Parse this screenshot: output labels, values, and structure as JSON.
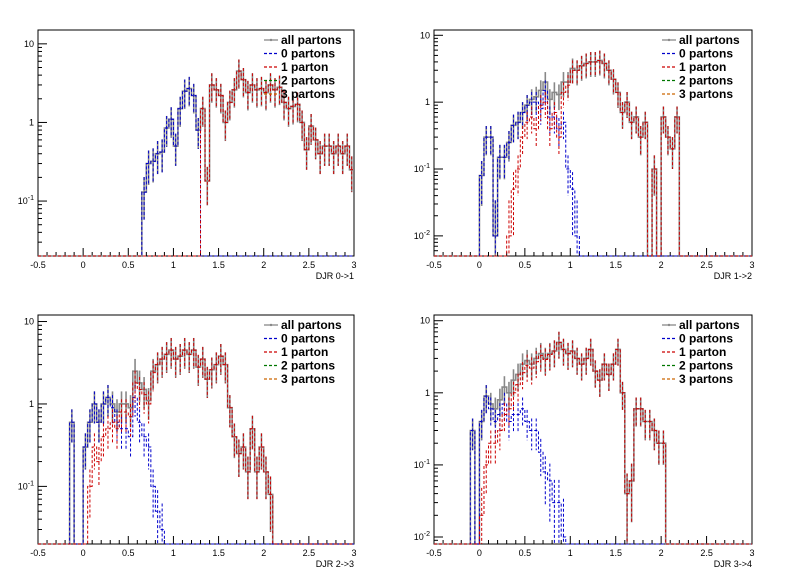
{
  "legend": {
    "entries": [
      {
        "label": "all partons",
        "color": "#888888",
        "dash": "solid"
      },
      {
        "label": "0 partons",
        "color": "#0000cc",
        "dash": "dash"
      },
      {
        "label": "1 parton",
        "color": "#cc0000",
        "dash": "dash"
      },
      {
        "label": "2 partons",
        "color": "#007700",
        "dash": "dash"
      },
      {
        "label": "3 partons",
        "color": "#cc6600",
        "dash": "dash"
      }
    ]
  },
  "chart_data": [
    {
      "type": "histogram",
      "xlabel": "DJR 0->1",
      "xlim": [
        -0.5,
        3
      ],
      "ylim": [
        0.02,
        15
      ],
      "yscale": "log",
      "xticks": [
        "-0.5",
        "0",
        "0.5",
        "1",
        "1.5",
        "2",
        "2.5",
        "3"
      ],
      "yticks": [
        {
          "v": 0.1,
          "label": "10-1"
        },
        {
          "v": 1,
          "label": "1"
        },
        {
          "v": 10,
          "label": "10"
        }
      ],
      "legend_position": "top-right",
      "bin_width": 0.05,
      "bin_start": -0.5,
      "series": [
        {
          "name": "all partons",
          "values": [
            0,
            0,
            0,
            0,
            0,
            0,
            0,
            0,
            0,
            0,
            0,
            0,
            0,
            0,
            0,
            0,
            0,
            0,
            0,
            0,
            0,
            0,
            0,
            0.13,
            0.3,
            0.32,
            0.4,
            0.42,
            0.85,
            1.1,
            0.5,
            1.5,
            2.5,
            2.7,
            2.2,
            0.8,
            1.5,
            0.18,
            3.0,
            2.6,
            2.2,
            1.0,
            1.8,
            2.6,
            4.5,
            3.5,
            2.4,
            3.0,
            2.6,
            2.7,
            2.4,
            3.0,
            2.6,
            2.8,
            1.8,
            1.5,
            1.6,
            1.7,
            1.0,
            0.45,
            0.9,
            0.6,
            0.4,
            0.5,
            0.5,
            0.4,
            0.5,
            0.4,
            0.5,
            0.25
          ]
        },
        {
          "name": "0 partons",
          "values": [
            0,
            0,
            0,
            0,
            0,
            0,
            0,
            0,
            0,
            0,
            0,
            0,
            0,
            0,
            0,
            0,
            0,
            0,
            0,
            0,
            0,
            0,
            0,
            0.13,
            0.3,
            0.32,
            0.4,
            0.42,
            0.85,
            1.1,
            0.5,
            1.5,
            2.5,
            2.7,
            2.2,
            0.8,
            0,
            0,
            0,
            0,
            0,
            0,
            0,
            0,
            0,
            0,
            0,
            0,
            0,
            0,
            0,
            0,
            0,
            0,
            0,
            0,
            0,
            0,
            0,
            0,
            0,
            0,
            0,
            0,
            0,
            0,
            0,
            0,
            0,
            0
          ]
        },
        {
          "name": "1 parton",
          "values": [
            0,
            0,
            0,
            0,
            0,
            0,
            0,
            0,
            0,
            0,
            0,
            0,
            0,
            0,
            0,
            0,
            0,
            0,
            0,
            0,
            0,
            0,
            0,
            0,
            0,
            0,
            0,
            0,
            0,
            0,
            0,
            0,
            0,
            0,
            0,
            0,
            1.5,
            0.18,
            3.0,
            2.6,
            2.2,
            1.0,
            1.8,
            2.6,
            4.5,
            3.5,
            2.4,
            3.0,
            2.6,
            2.7,
            2.4,
            3.0,
            2.6,
            2.8,
            1.8,
            1.5,
            1.6,
            1.7,
            1.0,
            0.45,
            0.9,
            0.6,
            0.4,
            0.5,
            0.5,
            0.4,
            0.5,
            0.4,
            0.5,
            0.25
          ]
        }
      ]
    },
    {
      "type": "histogram",
      "xlabel": "DJR 1->2",
      "xlim": [
        -0.5,
        3
      ],
      "ylim": [
        0.005,
        12
      ],
      "yscale": "log",
      "xticks": [
        "-0.5",
        "0",
        "0.5",
        "1",
        "1.5",
        "2",
        "2.5",
        "3"
      ],
      "yticks": [
        {
          "v": 0.01,
          "label": "10-2"
        },
        {
          "v": 0.1,
          "label": "10-1"
        },
        {
          "v": 1,
          "label": "1"
        },
        {
          "v": 10,
          "label": "10"
        }
      ],
      "legend_position": "top-right",
      "bin_width": 0.05,
      "bin_start": -0.5,
      "series": [
        {
          "name": "all partons",
          "values": [
            0,
            0,
            0,
            0,
            0,
            0,
            0,
            0,
            0,
            0,
            0.08,
            0.3,
            0.3,
            0.01,
            0.15,
            0.15,
            0.25,
            0.45,
            0.5,
            0.7,
            0.9,
            1.1,
            1.2,
            1.5,
            2.0,
            1.1,
            1.4,
            1.3,
            2.0,
            2.0,
            3.2,
            3.0,
            3.5,
            3.8,
            4.0,
            4.0,
            4.2,
            3.8,
            3.0,
            2.2,
            1.4,
            0.7,
            1.0,
            0.5,
            0.6,
            0.3,
            0.5,
            0,
            0.1,
            0,
            0.6,
            0.3,
            0.2,
            0.6,
            0,
            0,
            0,
            0,
            0,
            0,
            0,
            0,
            0,
            0,
            0,
            0,
            0,
            0,
            0,
            0
          ]
        },
        {
          "name": "0 partons",
          "values": [
            0,
            0,
            0,
            0,
            0,
            0,
            0,
            0,
            0,
            0,
            0.08,
            0.3,
            0.3,
            0.01,
            0.15,
            0.15,
            0.25,
            0.45,
            0.5,
            0.7,
            0.9,
            1.0,
            1.0,
            0.8,
            1.5,
            0.6,
            0.6,
            0.4,
            0.5,
            0.1,
            0.05,
            0.01,
            0,
            0,
            0,
            0,
            0,
            0,
            0,
            0,
            0,
            0,
            0,
            0,
            0,
            0,
            0,
            0,
            0,
            0,
            0,
            0,
            0,
            0,
            0,
            0,
            0,
            0,
            0,
            0,
            0,
            0,
            0,
            0,
            0,
            0,
            0,
            0,
            0,
            0
          ]
        },
        {
          "name": "1 parton",
          "values": [
            0,
            0,
            0,
            0,
            0,
            0,
            0,
            0,
            0,
            0,
            0,
            0,
            0,
            0,
            0,
            0,
            0.01,
            0.05,
            0.1,
            0.3,
            0.5,
            0.6,
            0.4,
            0.9,
            1.0,
            0.4,
            0.7,
            0.3,
            1.4,
            1.8,
            3.0,
            3.0,
            3.5,
            3.8,
            4.0,
            4.0,
            4.2,
            3.8,
            3.0,
            2.2,
            1.4,
            0.7,
            1.0,
            0.5,
            0.6,
            0.3,
            0.5,
            0,
            0.1,
            0,
            0.6,
            0.3,
            0.2,
            0.6,
            0,
            0,
            0,
            0,
            0,
            0,
            0,
            0,
            0,
            0,
            0,
            0,
            0,
            0,
            0,
            0
          ]
        }
      ]
    },
    {
      "type": "histogram",
      "xlabel": "DJR 2->3",
      "xlim": [
        -0.5,
        3
      ],
      "ylim": [
        0.02,
        12
      ],
      "yscale": "log",
      "xticks": [
        "-0.5",
        "0",
        "0.5",
        "1",
        "1.5",
        "2",
        "2.5",
        "3"
      ],
      "yticks": [
        {
          "v": 0.1,
          "label": "10-1"
        },
        {
          "v": 1,
          "label": "1"
        },
        {
          "v": 10,
          "label": "10"
        }
      ],
      "legend_position": "top-right",
      "bin_width": 0.05,
      "bin_start": -0.5,
      "series": [
        {
          "name": "all partons",
          "values": [
            0,
            0,
            0,
            0,
            0,
            0,
            0,
            0.6,
            0,
            0,
            0.3,
            0.6,
            1.0,
            0.6,
            1.0,
            1.2,
            1.0,
            0.8,
            1.0,
            1.0,
            0.9,
            2.5,
            1.8,
            1.5,
            1.1,
            2.5,
            3.0,
            3.5,
            4.0,
            4.5,
            3.5,
            3.8,
            4.5,
            4.0,
            4.5,
            2.8,
            3.5,
            2.0,
            2.6,
            3.0,
            3.8,
            3.0,
            0.9,
            0.4,
            0.25,
            0.3,
            0.15,
            0.5,
            0.15,
            0.3,
            0.15,
            0.08,
            0,
            0,
            0,
            0,
            0,
            0,
            0,
            0,
            0,
            0,
            0,
            0,
            0,
            0,
            0,
            0,
            0,
            0
          ]
        },
        {
          "name": "0 partons",
          "values": [
            0,
            0,
            0,
            0,
            0,
            0,
            0,
            0.6,
            0,
            0,
            0.3,
            0.6,
            1.0,
            0.6,
            1.0,
            1.2,
            0.9,
            0.6,
            0.5,
            0.5,
            0.4,
            1.2,
            0.6,
            0.4,
            0.3,
            0.1,
            0.05,
            0.03,
            0,
            0,
            0,
            0,
            0,
            0,
            0,
            0,
            0,
            0,
            0,
            0,
            0,
            0,
            0,
            0,
            0,
            0,
            0,
            0,
            0,
            0,
            0,
            0,
            0,
            0,
            0,
            0,
            0,
            0,
            0,
            0,
            0,
            0,
            0,
            0,
            0,
            0,
            0,
            0,
            0,
            0
          ]
        },
        {
          "name": "1 parton",
          "values": [
            0,
            0,
            0,
            0,
            0,
            0,
            0,
            0,
            0,
            0,
            0,
            0.1,
            0.3,
            0.2,
            0.4,
            0.5,
            0.6,
            0.5,
            0.8,
            0.8,
            0.7,
            1.8,
            1.5,
            1.3,
            1.0,
            2.4,
            3.0,
            3.5,
            4.0,
            4.5,
            3.5,
            3.8,
            4.5,
            4.0,
            4.5,
            2.8,
            3.5,
            2.0,
            2.6,
            3.0,
            3.8,
            3.0,
            0.9,
            0.4,
            0.25,
            0.3,
            0.15,
            0.5,
            0.15,
            0.3,
            0.15,
            0.08,
            0,
            0,
            0,
            0,
            0,
            0,
            0,
            0,
            0,
            0,
            0,
            0,
            0,
            0,
            0,
            0,
            0,
            0
          ]
        }
      ]
    },
    {
      "type": "histogram",
      "xlabel": "DJR 3->4",
      "xlim": [
        -0.5,
        3
      ],
      "ylim": [
        0.008,
        12
      ],
      "yscale": "log",
      "xticks": [
        "-0.5",
        "0",
        "0.5",
        "1",
        "1.5",
        "2",
        "2.5",
        "3"
      ],
      "yticks": [
        {
          "v": 0.01,
          "label": "10-2"
        },
        {
          "v": 0.1,
          "label": "10-1"
        },
        {
          "v": 1,
          "label": "1"
        },
        {
          "v": 10,
          "label": "10"
        }
      ],
      "legend_position": "top-right",
      "bin_width": 0.05,
      "bin_start": -0.5,
      "series": [
        {
          "name": "all partons",
          "values": [
            0,
            0,
            0,
            0,
            0,
            0,
            0,
            0,
            0.3,
            0,
            0.4,
            0.9,
            0.7,
            0.6,
            0.8,
            1.2,
            1.0,
            1.5,
            1.8,
            2.5,
            2.8,
            2.5,
            3.0,
            3.5,
            3.0,
            3.5,
            3.8,
            5.0,
            4.0,
            3.5,
            3.8,
            3.0,
            2.5,
            3.0,
            4.0,
            2.0,
            1.5,
            2.5,
            1.8,
            2.5,
            4.0,
            1.0,
            0.04,
            0.06,
            0.6,
            0.6,
            0.4,
            0.4,
            0.3,
            0.2,
            0.2,
            0,
            0,
            0,
            0,
            0,
            0,
            0,
            0,
            0,
            0,
            0,
            0,
            0,
            0,
            0,
            0,
            0,
            0,
            0
          ]
        },
        {
          "name": "0 partons",
          "values": [
            0,
            0,
            0,
            0,
            0,
            0,
            0,
            0,
            0.3,
            0,
            0.4,
            0.9,
            0.6,
            0.4,
            0.5,
            0.7,
            0.4,
            0.5,
            0.5,
            0.6,
            0.4,
            0.3,
            0.3,
            0.15,
            0.08,
            0.06,
            0.03,
            0.03,
            0.01,
            0,
            0,
            0,
            0,
            0,
            0,
            0,
            0,
            0,
            0,
            0,
            0,
            0,
            0,
            0,
            0,
            0,
            0,
            0,
            0,
            0,
            0,
            0,
            0,
            0,
            0,
            0,
            0,
            0,
            0,
            0,
            0,
            0,
            0,
            0,
            0,
            0,
            0,
            0,
            0,
            0
          ]
        },
        {
          "name": "1 parton",
          "values": [
            0,
            0,
            0,
            0,
            0,
            0,
            0,
            0,
            0,
            0,
            0.02,
            0.1,
            0.2,
            0.2,
            0.3,
            0.5,
            0.6,
            1.0,
            1.3,
            1.9,
            2.4,
            2.2,
            2.7,
            3.3,
            2.9,
            3.4,
            3.8,
            5.0,
            4.0,
            3.5,
            3.8,
            3.0,
            2.5,
            3.0,
            4.0,
            2.0,
            1.5,
            2.5,
            1.8,
            2.5,
            4.0,
            1.0,
            0.04,
            0.06,
            0.6,
            0.6,
            0.4,
            0.4,
            0.3,
            0.2,
            0.2,
            0,
            0,
            0,
            0,
            0,
            0,
            0,
            0,
            0,
            0,
            0,
            0,
            0,
            0,
            0,
            0,
            0,
            0,
            0
          ]
        }
      ]
    }
  ]
}
